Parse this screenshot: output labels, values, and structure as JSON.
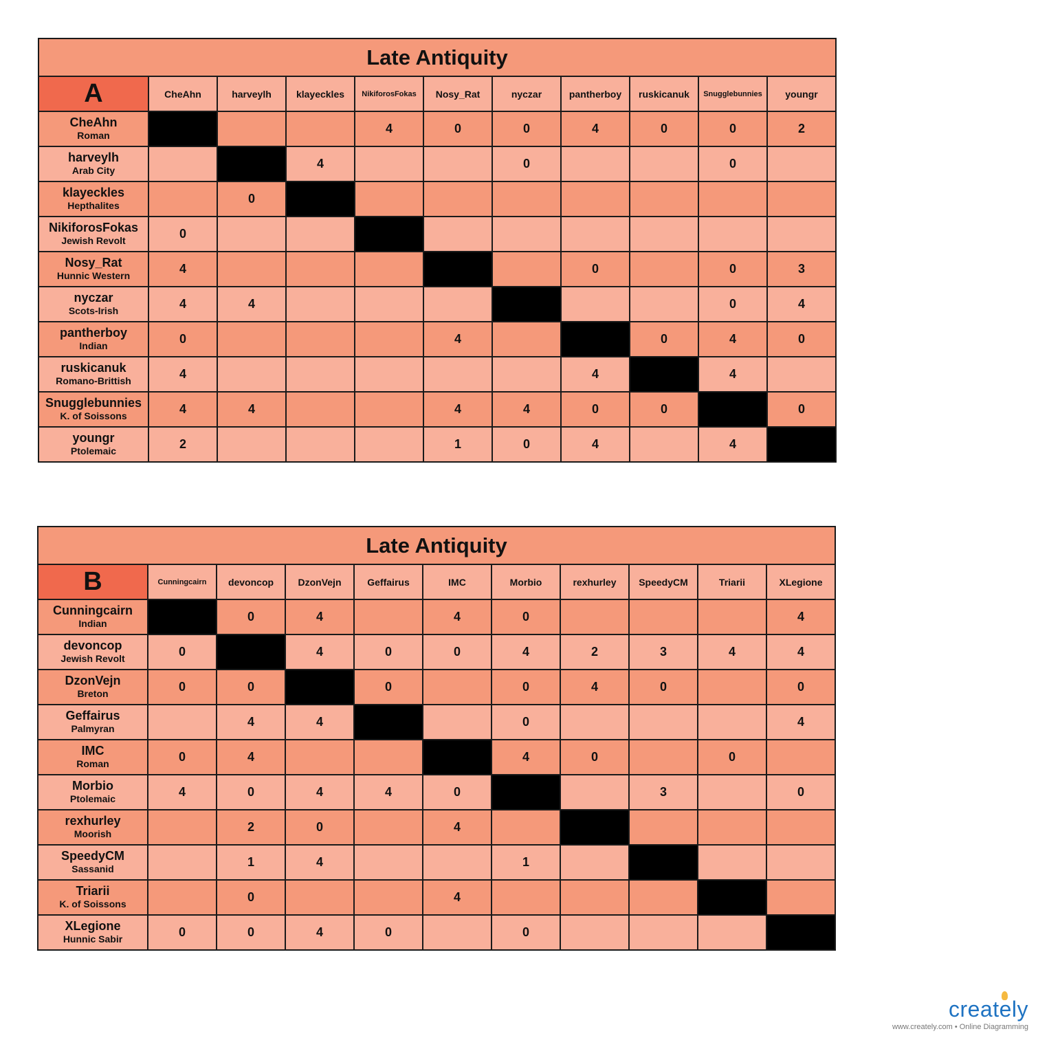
{
  "tables": [
    {
      "title": "Late Antiquity",
      "group": "A",
      "columns": [
        "CheAhn",
        "harveylh",
        "klayeckles",
        "NikiforosFokas",
        "Nosy_Rat",
        "nyczar",
        "pantherboy",
        "ruskicanuk",
        "Snugglebunnies",
        "youngr"
      ],
      "rows": [
        {
          "player": "CheAhn",
          "civ": "Roman",
          "cells": [
            null,
            "",
            "",
            "4",
            "0",
            "0",
            "4",
            "0",
            "0",
            "2"
          ]
        },
        {
          "player": "harveylh",
          "civ": "Arab City",
          "cells": [
            "",
            null,
            "4",
            "",
            "",
            "0",
            "",
            "",
            "0",
            ""
          ]
        },
        {
          "player": "klayeckles",
          "civ": "Hepthalites",
          "cells": [
            "",
            "0",
            null,
            "",
            "",
            "",
            "",
            "",
            "",
            ""
          ]
        },
        {
          "player": "NikiforosFokas",
          "civ": "Jewish Revolt",
          "cells": [
            "0",
            "",
            "",
            null,
            "",
            "",
            "",
            "",
            "",
            ""
          ]
        },
        {
          "player": "Nosy_Rat",
          "civ": "Hunnic Western",
          "cells": [
            "4",
            "",
            "",
            "",
            null,
            "",
            "0",
            "",
            "0",
            "3"
          ]
        },
        {
          "player": "nyczar",
          "civ": "Scots-Irish",
          "cells": [
            "4",
            "4",
            "",
            "",
            "",
            null,
            "",
            "",
            "0",
            "4"
          ]
        },
        {
          "player": "pantherboy",
          "civ": "Indian",
          "cells": [
            "0",
            "",
            "",
            "",
            "4",
            "",
            null,
            "0",
            "4",
            "0"
          ]
        },
        {
          "player": "ruskicanuk",
          "civ": "Romano-Brittish",
          "cells": [
            "4",
            "",
            "",
            "",
            "",
            "",
            "4",
            null,
            "4",
            ""
          ]
        },
        {
          "player": "Snugglebunnies",
          "civ": "K. of Soissons",
          "cells": [
            "4",
            "4",
            "",
            "",
            "4",
            "4",
            "0",
            "0",
            null,
            "0"
          ]
        },
        {
          "player": "youngr",
          "civ": "Ptolemaic",
          "cells": [
            "2",
            "",
            "",
            "",
            "1",
            "0",
            "4",
            "",
            "4",
            null
          ]
        }
      ]
    },
    {
      "title": "Late Antiquity",
      "group": "B",
      "columns": [
        "Cunningcairn",
        "devoncop",
        "DzonVejn",
        "Geffairus",
        "IMC",
        "Morbio",
        "rexhurley",
        "SpeedyCM",
        "Triarii",
        "XLegione"
      ],
      "rows": [
        {
          "player": "Cunningcairn",
          "civ": "Indian",
          "cells": [
            null,
            "0",
            "4",
            "",
            "4",
            "0",
            "",
            "",
            "",
            "4"
          ]
        },
        {
          "player": "devoncop",
          "civ": "Jewish Revolt",
          "cells": [
            "0",
            null,
            "4",
            "0",
            "0",
            "4",
            "2",
            "3",
            "4",
            "4"
          ]
        },
        {
          "player": "DzonVejn",
          "civ": "Breton",
          "cells": [
            "0",
            "0",
            null,
            "0",
            "",
            "0",
            "4",
            "0",
            "",
            "0"
          ]
        },
        {
          "player": "Geffairus",
          "civ": "Palmyran",
          "cells": [
            "",
            "4",
            "4",
            null,
            "",
            "0",
            "",
            "",
            "",
            "4"
          ]
        },
        {
          "player": "IMC",
          "civ": "Roman",
          "cells": [
            "0",
            "4",
            "",
            "",
            null,
            "4",
            "0",
            "",
            "0",
            ""
          ]
        },
        {
          "player": "Morbio",
          "civ": "Ptolemaic",
          "cells": [
            "4",
            "0",
            "4",
            "4",
            "0",
            null,
            "",
            "3",
            "",
            "0"
          ]
        },
        {
          "player": "rexhurley",
          "civ": "Moorish",
          "cells": [
            "",
            "2",
            "0",
            "",
            "4",
            "",
            null,
            "",
            "",
            ""
          ]
        },
        {
          "player": "SpeedyCM",
          "civ": "Sassanid",
          "cells": [
            "",
            "1",
            "4",
            "",
            "",
            "1",
            "",
            null,
            "",
            ""
          ]
        },
        {
          "player": "Triarii",
          "civ": "K. of Soissons",
          "cells": [
            "",
            "0",
            "",
            "",
            "4",
            "",
            "",
            "",
            null,
            ""
          ]
        },
        {
          "player": "XLegione",
          "civ": "Hunnic Sabir",
          "cells": [
            "0",
            "0",
            "4",
            "0",
            "",
            "0",
            "",
            "",
            "",
            null
          ]
        }
      ]
    }
  ],
  "footer": {
    "brand": "creately",
    "tagline": "www.creately.com • Online Diagramming"
  },
  "colors": {
    "title_bg": "#f5997a",
    "group_bg": "#f0694d",
    "row_dark": "#f5997a",
    "row_light": "#f9b09b",
    "diagonal": "#000000",
    "brand_blue": "#1f73c2"
  }
}
